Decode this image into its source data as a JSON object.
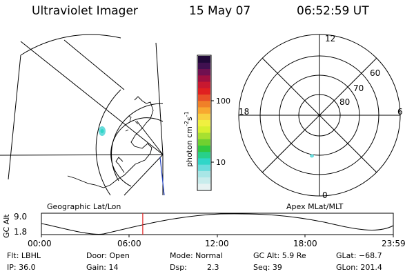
{
  "header": {
    "instrument": "Ultraviolet Imager",
    "date": "15 May 07",
    "time": "06:52:59 UT"
  },
  "left_panel": {
    "caption": "Geographic Lat/Lon"
  },
  "right_panel": {
    "caption": "Apex MLat/MLT",
    "mlt_labels": [
      "12",
      "18",
      "6",
      "0"
    ],
    "mlat_labels": [
      "60",
      "70",
      "80"
    ]
  },
  "colorbar": {
    "unit_label": "photon cm",
    "unit_exp1": "-2",
    "unit_s": "s",
    "unit_exp2": "-1",
    "ticks": [
      "100",
      "10"
    ],
    "colors": [
      "#e6f2f2",
      "#c8ecec",
      "#a8e6e6",
      "#6adcdc",
      "#30d6c8",
      "#28d08a",
      "#30c840",
      "#70d030",
      "#a8e030",
      "#d8f030",
      "#f0f040",
      "#f8d040",
      "#f8a830",
      "#f08028",
      "#e85028",
      "#e02020",
      "#c81830",
      "#a01040",
      "#701050",
      "#401050",
      "#200838"
    ]
  },
  "orbit_plot": {
    "y_axis_label": "GC Alt",
    "y_ticks": [
      "9.0",
      "1.8"
    ],
    "x_ticks": [
      "00:00",
      "06:00",
      "12:00",
      "18:00",
      "23:59"
    ],
    "current_time_fraction": 0.288
  },
  "status": {
    "row1": {
      "flt": "Flt: LBHL",
      "door": "Door: Open",
      "mode": "Mode: Normal",
      "gc_alt": "GC Alt: 5.9 Re",
      "glat": "GLat: −68.7"
    },
    "row2": {
      "ip": "IP: 36.0",
      "gain": "Gain: 14",
      "dsp_label": "Dsp:",
      "dsp_value": "2.3",
      "seq": "Seq: 39",
      "glon": "GLon: 201.4"
    }
  }
}
